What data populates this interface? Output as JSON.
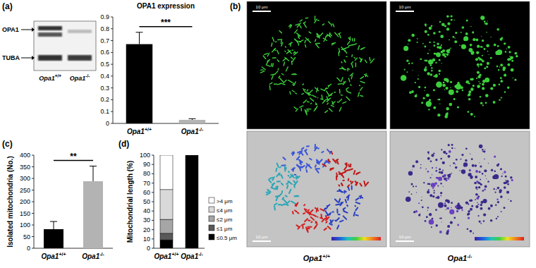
{
  "panels": [
    "(a)",
    "(b)",
    "(c)",
    "(d)"
  ],
  "blot": {
    "bands": [
      "OPA1",
      "TUBA"
    ],
    "lanes": [
      "Opa1+/+",
      "Opa1-/-"
    ]
  },
  "micrographs": {
    "lanes": [
      "Opa1+/+",
      "Opa1-/-"
    ],
    "scale_bar": "10 μm"
  },
  "chart_data": [
    {
      "type": "bar",
      "title": "OPA1 expression",
      "categories": [
        "Opa1+/+",
        "Opa1-/-"
      ],
      "values": [
        0.67,
        0.03
      ],
      "errors": [
        0.1,
        0.01
      ],
      "colors": [
        "#000000",
        "#b3b3b3"
      ],
      "ylim": [
        0,
        0.9
      ],
      "yticks": [
        0,
        0.1,
        0.2,
        0.3,
        0.4,
        0.5,
        0.6,
        0.7,
        0.8,
        0.9
      ],
      "annotations": [
        "***"
      ]
    },
    {
      "type": "bar",
      "ylabel": "Isolated mitochondria (No.)",
      "categories": [
        "Opa1+/+",
        "Opa1-/-"
      ],
      "values": [
        82,
        288
      ],
      "errors": [
        33,
        65
      ],
      "colors": [
        "#000000",
        "#b3b3b3"
      ],
      "ylim": [
        0,
        400
      ],
      "yticks": [
        0,
        50,
        100,
        150,
        200,
        250,
        300,
        350,
        400
      ],
      "annotations": [
        "**"
      ]
    },
    {
      "type": "bar",
      "stacked": true,
      "ylabel": "Mitochondrial length (%)",
      "categories": [
        "Opa1+/+",
        "Opa1-/-"
      ],
      "series": [
        {
          "name": "≤0.5 μm",
          "color": "#000000",
          "values": [
            9,
            100
          ]
        },
        {
          "name": "≤1 μm",
          "color": "#595959",
          "values": [
            7,
            0
          ]
        },
        {
          "name": "≤2 μm",
          "color": "#a6a6a6",
          "values": [
            15,
            0
          ]
        },
        {
          "name": "≤4 μm",
          "color": "#d9d9d9",
          "values": [
            32,
            0
          ]
        },
        {
          "name": ">4 μm",
          "color": "#ffffff",
          "values": [
            37,
            0
          ]
        }
      ],
      "ylim": [
        0,
        100
      ],
      "yticks": [
        0,
        10,
        20,
        30,
        40,
        50,
        60,
        70,
        80,
        90,
        100
      ],
      "legend": "right"
    }
  ]
}
